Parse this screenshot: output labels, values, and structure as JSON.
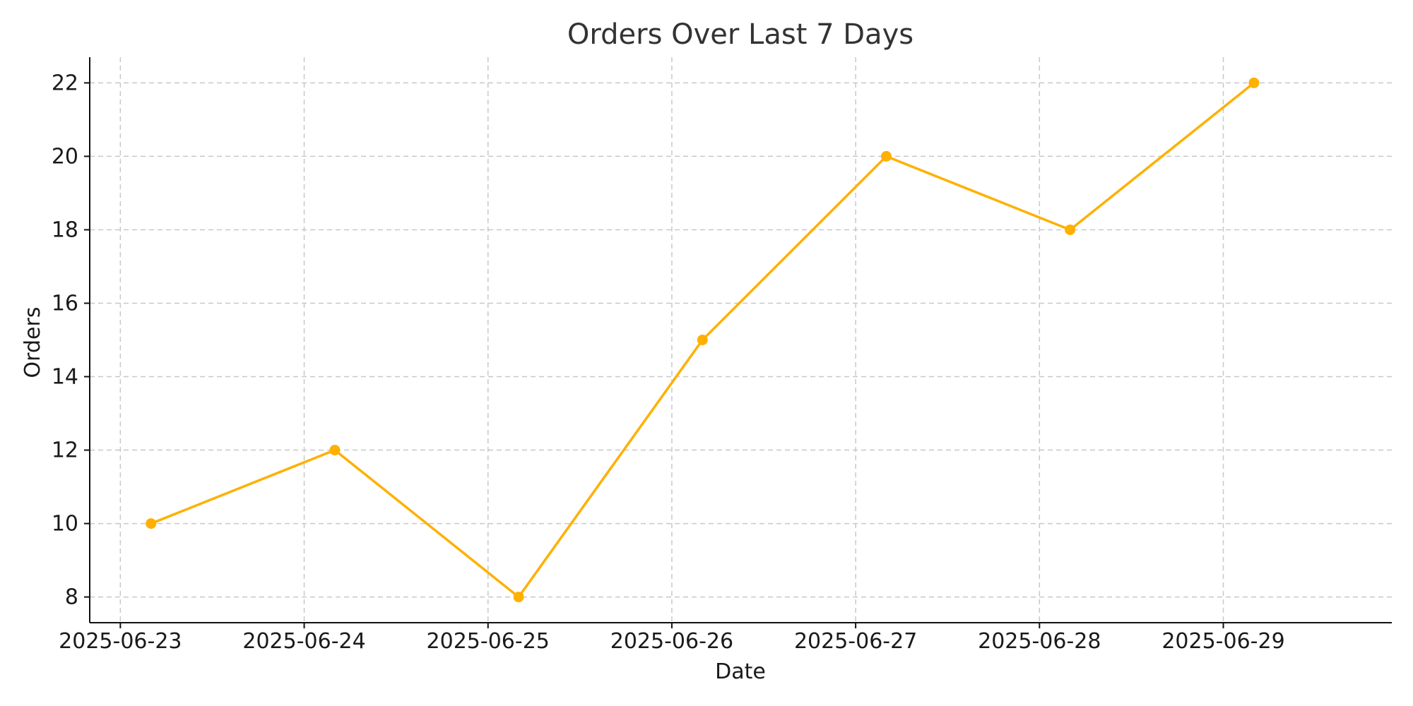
{
  "chart_data": {
    "type": "line",
    "title": "Orders Over Last 7 Days",
    "xlabel": "Date",
    "ylabel": "Orders",
    "x": [
      "2025-06-23",
      "2025-06-24",
      "2025-06-25",
      "2025-06-26",
      "2025-06-27",
      "2025-06-28",
      "2025-06-29"
    ],
    "series": [
      {
        "values": [
          10,
          12,
          8,
          15,
          20,
          18,
          22
        ],
        "color": "#FFB000",
        "marker": "circle"
      }
    ],
    "yticks": [
      8,
      10,
      12,
      14,
      16,
      18,
      20,
      22
    ],
    "ylim": [
      7.3,
      22.7
    ],
    "xlim": [
      "2025-06-22T20:00",
      "2025-06-29T22:00"
    ],
    "grid": true,
    "point_time_of_day": "04:00"
  }
}
